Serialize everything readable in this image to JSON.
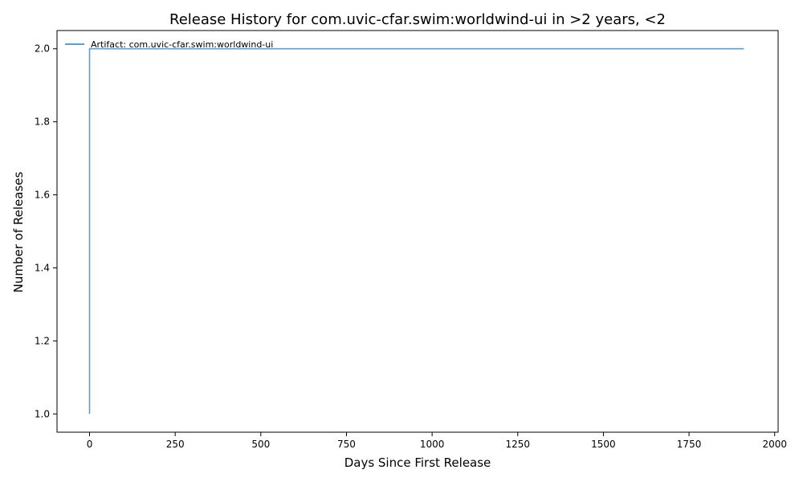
{
  "chart_data": {
    "type": "line",
    "title": "Release History for com.uvic-cfar.swim:worldwind-ui in >2 years, <2",
    "xlabel": "Days Since First Release",
    "ylabel": "Number of Releases",
    "xlim": [
      -95,
      2010
    ],
    "ylim": [
      0.95,
      2.05
    ],
    "x_ticks": [
      0,
      250,
      500,
      750,
      1000,
      1250,
      1500,
      1750,
      2000
    ],
    "y_ticks": [
      1.0,
      1.2,
      1.4,
      1.6,
      1.8,
      2.0
    ],
    "x_tick_labels": [
      "0",
      "250",
      "500",
      "750",
      "1000",
      "1250",
      "1500",
      "1750",
      "2000"
    ],
    "y_tick_labels": [
      "1.0",
      "1.2",
      "1.4",
      "1.6",
      "1.8",
      "2.0"
    ],
    "grid": false,
    "legend_position": "top-left",
    "series": [
      {
        "name": "Artifact: com.uvic-cfar.swim:worldwind-ui",
        "color": "#5b9fcf",
        "points": [
          [
            0,
            1
          ],
          [
            0,
            2
          ],
          [
            1910,
            2
          ]
        ]
      }
    ]
  }
}
